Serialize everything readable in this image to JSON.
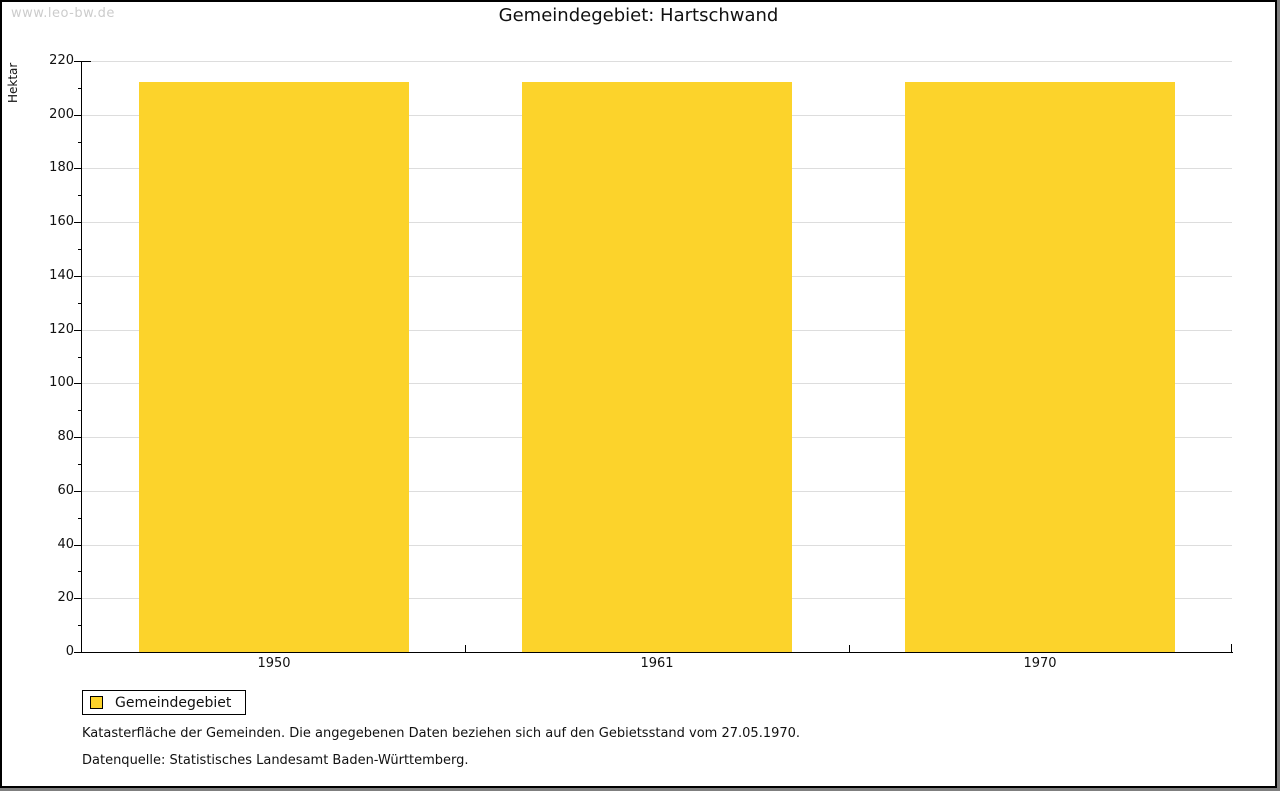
{
  "watermark": "www.leo-bw.de",
  "chart_data": {
    "type": "bar",
    "title": "Gemeindegebiet: Hartschwand",
    "ylabel": "Hektar",
    "xlabel": "",
    "categories": [
      "1950",
      "1961",
      "1970"
    ],
    "series": [
      {
        "name": "Gemeindegebiet",
        "values": [
          212,
          212,
          212
        ]
      }
    ],
    "ylim": [
      0,
      220
    ],
    "ytick_major": 20,
    "ytick_minor": 10,
    "grid": "horizontal",
    "legend_position": "bottom-left",
    "bar_color": "#fcd32b"
  },
  "legend": {
    "items": [
      {
        "label": "Gemeindegebiet",
        "color": "#fcd32b"
      }
    ]
  },
  "footnotes": [
    "Katasterfläche der Gemeinden. Die angegebenen Daten beziehen sich auf den Gebietsstand vom 27.05.1970.",
    "Datenquelle: Statistisches Landesamt Baden-Württemberg."
  ],
  "colors": {
    "bar": "#fcd32b",
    "grid": "#dddddd",
    "axis": "#000000",
    "watermark": "#cccccc",
    "frame_shadow": "#7f7f7f"
  }
}
